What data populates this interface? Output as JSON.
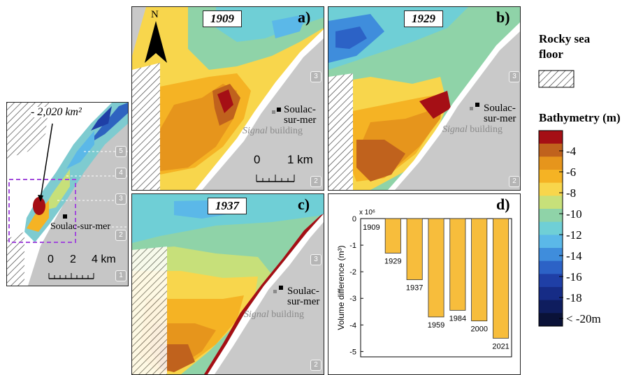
{
  "inset_map": {
    "area_label": "- 2,020 km²",
    "town_label": "Soulac-sur-mer",
    "scale_labels": [
      "0",
      "2",
      "4 km"
    ],
    "zone_numbers": [
      "5",
      "4",
      "3",
      "2",
      "1"
    ]
  },
  "panels": [
    {
      "year": "1909",
      "letter": "a)"
    },
    {
      "year": "1929",
      "letter": "b)"
    },
    {
      "year": "1937",
      "letter": "c)"
    }
  ],
  "north_label": "N",
  "town_label_line1": "Soulac-",
  "town_label_line2": "sur-mer",
  "signal_word": "Signal",
  "building_word": "building",
  "panel_scale_labels": [
    "0",
    "1 km"
  ],
  "panel_zone_numbers": [
    "3",
    "2"
  ],
  "legend": {
    "rocky_title_line1": "Rocky sea",
    "rocky_title_line2": "floor",
    "bathy_title": "Bathymetry (m)",
    "ticks": [
      "-4",
      "-6",
      "-8",
      "-10",
      "-12",
      "-14",
      "-16",
      "-18",
      "< -20m"
    ],
    "colors": [
      "#a50f15",
      "#c0621d",
      "#e6951c",
      "#f5b324",
      "#f8d64c",
      "#c7e07a",
      "#8fd3a8",
      "#6fcfd6",
      "#5bb8e8",
      "#3f8ddc",
      "#2c62c6",
      "#1f3fa6",
      "#162c86",
      "#0f1d5e",
      "#0a1238"
    ]
  },
  "chart_data": {
    "type": "bar",
    "panel_letter": "d)",
    "ylabel": "Volume difference (m³)",
    "y_multiplier": "x 10⁶",
    "categories": [
      "1909",
      "1929",
      "1937",
      "1959",
      "1984",
      "2000",
      "2021"
    ],
    "values": [
      0,
      -1.3,
      -2.3,
      -3.7,
      -3.45,
      -3.85,
      -4.5
    ],
    "ylim": [
      -5.2,
      0
    ],
    "yticks": [
      0,
      -1,
      -2,
      -3,
      -4,
      -5
    ],
    "bar_color": "#f7bd3c"
  }
}
